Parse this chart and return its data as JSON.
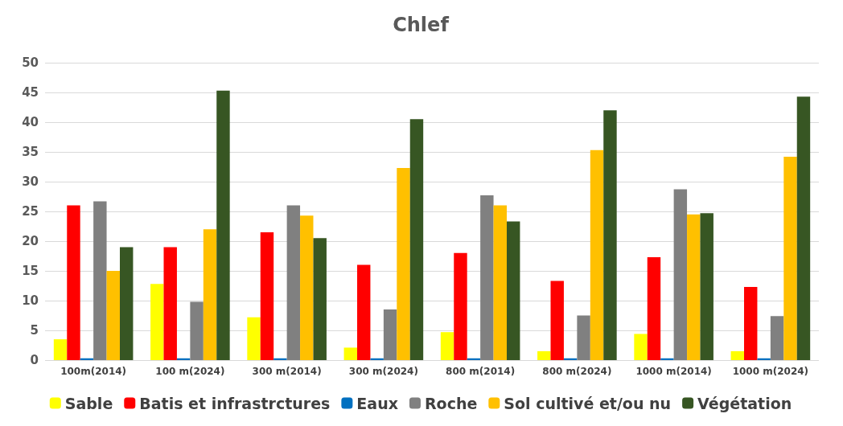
{
  "chart_data": {
    "type": "bar",
    "title": "Chlef",
    "categories": [
      "100m(2014)",
      "100 m(2024)",
      "300 m(2014)",
      "300 m(2024)",
      "800 m(2014)",
      "800 m(2024)",
      "1000 m(2014)",
      "1000 m(2024)"
    ],
    "series": [
      {
        "name": "Sable",
        "color": "#ffff00",
        "values": [
          3.5,
          12.8,
          7.2,
          2.1,
          4.7,
          1.5,
          4.4,
          1.5
        ]
      },
      {
        "name": "Batis et infrastrctures",
        "color": "#ff0000",
        "values": [
          26,
          19,
          21.5,
          16,
          18,
          13.3,
          17.3,
          12.3
        ]
      },
      {
        "name": "Eaux",
        "color": "#0070c0",
        "values": [
          0.3,
          0.3,
          0.3,
          0.3,
          0.3,
          0.3,
          0.3,
          0.3
        ]
      },
      {
        "name": "Roche",
        "color": "#808080",
        "values": [
          26.7,
          9.8,
          26,
          8.5,
          27.7,
          7.5,
          28.7,
          7.4
        ]
      },
      {
        "name": "Sol cultivé et/ou nu",
        "color": "#ffc000",
        "values": [
          15,
          22,
          24.3,
          32.3,
          26,
          35.3,
          24.5,
          34.2
        ]
      },
      {
        "name": "Végétation",
        "color": "#375623",
        "values": [
          19,
          45.3,
          20.5,
          40.5,
          23.3,
          42,
          24.7,
          44.3
        ]
      }
    ],
    "ylim": [
      0,
      50
    ],
    "yticks": [
      0,
      5,
      10,
      15,
      20,
      25,
      30,
      35,
      40,
      45,
      50
    ],
    "grid": "y",
    "legend": "bottom"
  }
}
